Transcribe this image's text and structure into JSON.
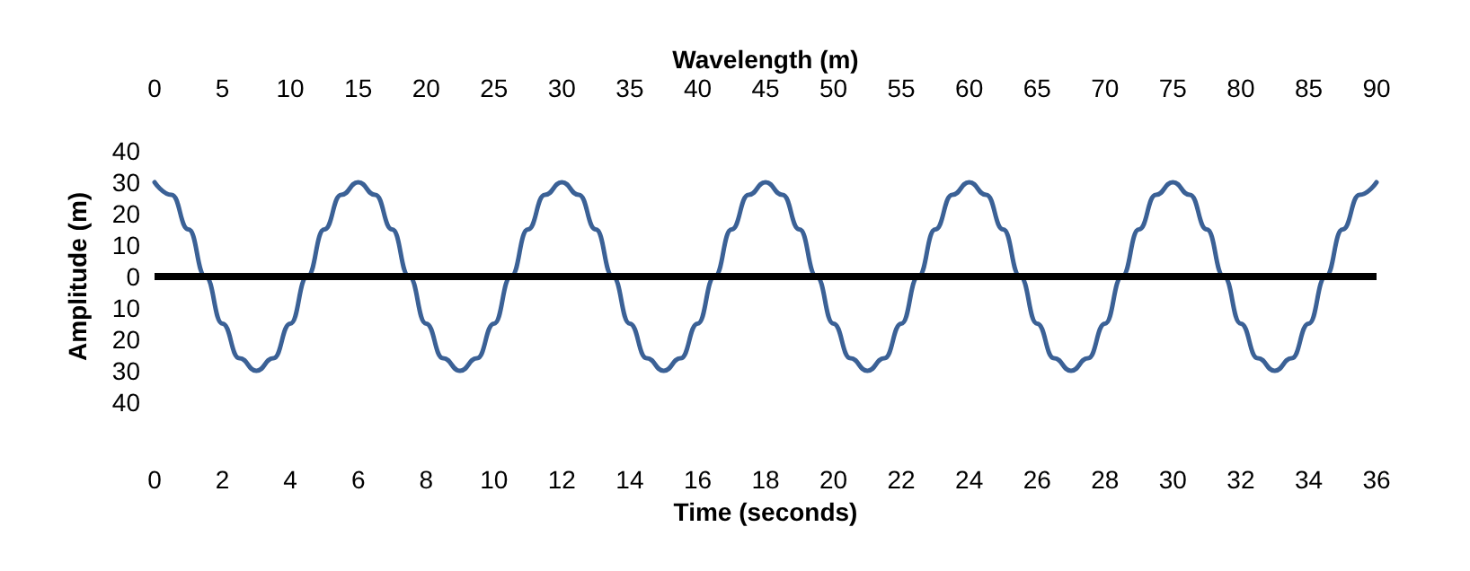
{
  "chart_data": {
    "type": "line",
    "xlabel": "Time (seconds)",
    "x2label": "Wavelength (m)",
    "ylabel": "Amplitude (m)",
    "x": [
      0,
      0.5,
      1,
      1.5,
      2,
      2.5,
      3,
      3.5,
      4,
      4.5,
      5,
      5.5,
      6,
      6.5,
      7,
      7.5,
      8,
      8.5,
      9,
      9.5,
      10,
      10.5,
      11,
      11.5,
      12,
      12.5,
      13,
      13.5,
      14,
      14.5,
      15,
      15.5,
      16,
      16.5,
      17,
      17.5,
      18,
      18.5,
      19,
      19.5,
      20,
      20.5,
      21,
      21.5,
      22,
      22.5,
      23,
      23.5,
      24,
      24.5,
      25,
      25.5,
      26,
      26.5,
      27,
      27.5,
      28,
      28.5,
      29,
      29.5,
      30,
      30.5,
      31,
      31.5,
      32,
      32.5,
      33,
      33.5,
      34,
      34.5,
      35,
      35.5,
      36
    ],
    "series": [
      {
        "color": "#3b6196",
        "values": [
          30,
          26,
          15,
          0,
          -15,
          -26,
          -30,
          -26,
          -15,
          0,
          15,
          26,
          30,
          26,
          15,
          0,
          -15,
          -26,
          -30,
          -26,
          -15,
          0,
          15,
          26,
          30,
          26,
          15,
          0,
          -15,
          -26,
          -30,
          -26,
          -15,
          0,
          15,
          26,
          30,
          26,
          15,
          0,
          -15,
          -26,
          -30,
          -26,
          -15,
          0,
          15,
          26,
          30,
          26,
          15,
          0,
          -15,
          -26,
          -30,
          -26,
          -15,
          0,
          15,
          26,
          30,
          26,
          15,
          0,
          -15,
          -26,
          -30,
          -26,
          -15,
          0,
          15,
          26,
          30
        ]
      }
    ],
    "xlim": [
      0,
      36
    ],
    "xticks": [
      0,
      2,
      4,
      6,
      8,
      10,
      12,
      14,
      16,
      18,
      20,
      22,
      24,
      26,
      28,
      30,
      32,
      34,
      36
    ],
    "x2lim": [
      0,
      90
    ],
    "x2ticks": [
      0,
      5,
      10,
      15,
      20,
      25,
      30,
      35,
      40,
      45,
      50,
      55,
      60,
      65,
      70,
      75,
      80,
      85,
      90
    ],
    "ylim": [
      -40,
      40
    ],
    "yticks": [
      {
        "value": -40,
        "label": "40"
      },
      {
        "value": -30,
        "label": "30"
      },
      {
        "value": -20,
        "label": "20"
      },
      {
        "value": -10,
        "label": "10"
      },
      0,
      10,
      20,
      30,
      40
    ],
    "ref_lines": [
      {
        "axis": "y",
        "value": 0,
        "color": "#000000"
      }
    ],
    "grid": false,
    "marker": "none",
    "line_style": "solid"
  }
}
